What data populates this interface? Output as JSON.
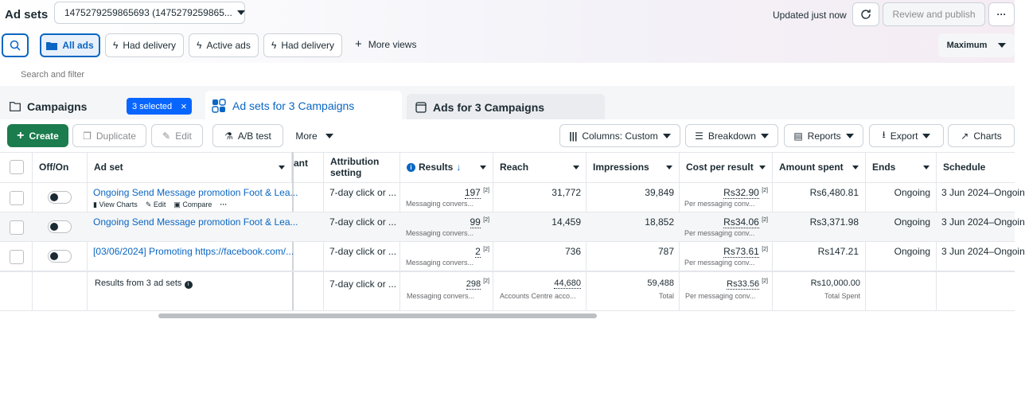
{
  "header": {
    "title": "Ad sets",
    "account": "1475279259865693 (1475279259865...",
    "updated": "Updated just now",
    "review": "Review and publish",
    "more": "···"
  },
  "views": {
    "all_ads": "All ads",
    "had_delivery_1": "Had delivery",
    "active_ads": "Active ads",
    "had_delivery_2": "Had delivery",
    "more_views": "More views",
    "maximum": "Maximum"
  },
  "search": {
    "placeholder": "Search and filter"
  },
  "tabs": {
    "campaigns": "Campaigns",
    "selected": "3 selected",
    "adsets": "Ad sets for 3 Campaigns",
    "ads": "Ads for 3 Campaigns"
  },
  "toolbar": {
    "create": "Create",
    "duplicate": "Duplicate",
    "edit": "Edit",
    "abtest": "A/B test",
    "more": "More",
    "columns": "Columns: Custom",
    "breakdown": "Breakdown",
    "reports": "Reports",
    "export": "Export",
    "charts": "Charts"
  },
  "columns": {
    "offon": "Off/On",
    "adset": "Ad set",
    "ant": "ant",
    "attribution": "Attribution setting",
    "results": "Results",
    "reach": "Reach",
    "impressions": "Impressions",
    "cpr": "Cost per result",
    "spent": "Amount spent",
    "ends": "Ends",
    "schedule": "Schedule"
  },
  "rows": [
    {
      "name": "Ongoing Send Message promotion Foot & Lea...",
      "attr": "7-day click or ...",
      "results": "197",
      "results_sub": "Messaging convers...",
      "reach": "31,772",
      "impr": "39,849",
      "cpr": "Rs32.90",
      "cpr_sub": "Per messaging conv...",
      "spent": "Rs6,480.81",
      "ends": "Ongoing",
      "schedule": "3 Jun 2024–Ongoin",
      "actions": {
        "charts": "View Charts",
        "edit": "Edit",
        "compare": "Compare",
        "more": "···"
      }
    },
    {
      "name": "Ongoing Send Message promotion Foot & Lea...",
      "attr": "7-day click or ...",
      "results": "99",
      "results_sub": "Messaging convers...",
      "reach": "14,459",
      "impr": "18,852",
      "cpr": "Rs34.06",
      "cpr_sub": "Per messaging conv...",
      "spent": "Rs3,371.98",
      "ends": "Ongoing",
      "schedule": "3 Jun 2024–Ongoin"
    },
    {
      "name": "[03/06/2024] Promoting https://facebook.com/...",
      "attr": "7-day click or ...",
      "results": "2",
      "results_sub": "Messaging convers...",
      "reach": "736",
      "impr": "787",
      "cpr": "Rs73.61",
      "cpr_sub": "Per messaging conv...",
      "spent": "Rs147.21",
      "ends": "Ongoing",
      "schedule": "3 Jun 2024–Ongoin"
    }
  ],
  "totals": {
    "label": "Results from 3 ad sets",
    "attr": "7-day click or ...",
    "results": "298",
    "results_sub": "Messaging convers...",
    "reach": "44,680",
    "reach_sub": "Accounts Centre acco...",
    "impr": "59,488",
    "impr_sub": "Total",
    "cpr": "Rs33.56",
    "cpr_sub": "Per messaging conv...",
    "spent": "Rs10,000.00",
    "spent_sub": "Total Spent"
  },
  "sup": "[2]",
  "colors": {
    "primary": "#0a66c2",
    "create": "#1b7c4d",
    "selected_badge": "#0866ff"
  }
}
